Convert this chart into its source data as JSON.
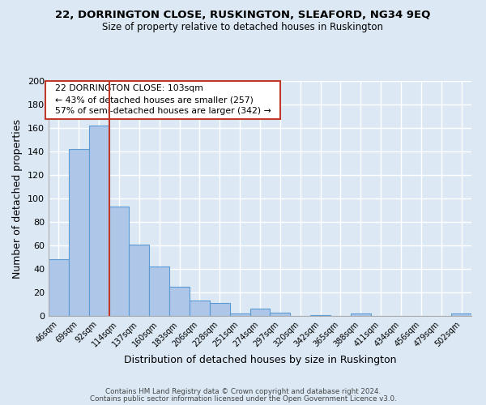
{
  "title": "22, DORRINGTON CLOSE, RUSKINGTON, SLEAFORD, NG34 9EQ",
  "subtitle": "Size of property relative to detached houses in Ruskington",
  "xlabel": "Distribution of detached houses by size in Ruskington",
  "ylabel": "Number of detached properties",
  "footnote1": "Contains HM Land Registry data © Crown copyright and database right 2024.",
  "footnote2": "Contains public sector information licensed under the Open Government Licence v3.0.",
  "categories": [
    "46sqm",
    "69sqm",
    "92sqm",
    "114sqm",
    "137sqm",
    "160sqm",
    "183sqm",
    "206sqm",
    "228sqm",
    "251sqm",
    "274sqm",
    "297sqm",
    "320sqm",
    "342sqm",
    "365sqm",
    "388sqm",
    "411sqm",
    "434sqm",
    "456sqm",
    "479sqm",
    "502sqm"
  ],
  "values": [
    48,
    142,
    162,
    93,
    61,
    42,
    25,
    13,
    11,
    2,
    6,
    3,
    0,
    1,
    0,
    2,
    0,
    0,
    0,
    0,
    2
  ],
  "bar_color": "#aec6e8",
  "bar_edge_color": "#5b9bd5",
  "background_color": "#dce9f5",
  "grid_color": "#ffffff",
  "vline_x": 2.5,
  "vline_color": "#c0392b",
  "annotation_text": "  22 DORRINGTON CLOSE: 103sqm  \n  ← 43% of detached houses are smaller (257)  \n  57% of semi-detached houses are larger (342) →  ",
  "annotation_box_color": "#ffffff",
  "annotation_box_edge": "#c0392b",
  "ylim": [
    0,
    200
  ],
  "yticks": [
    0,
    20,
    40,
    60,
    80,
    100,
    120,
    140,
    160,
    180,
    200
  ]
}
